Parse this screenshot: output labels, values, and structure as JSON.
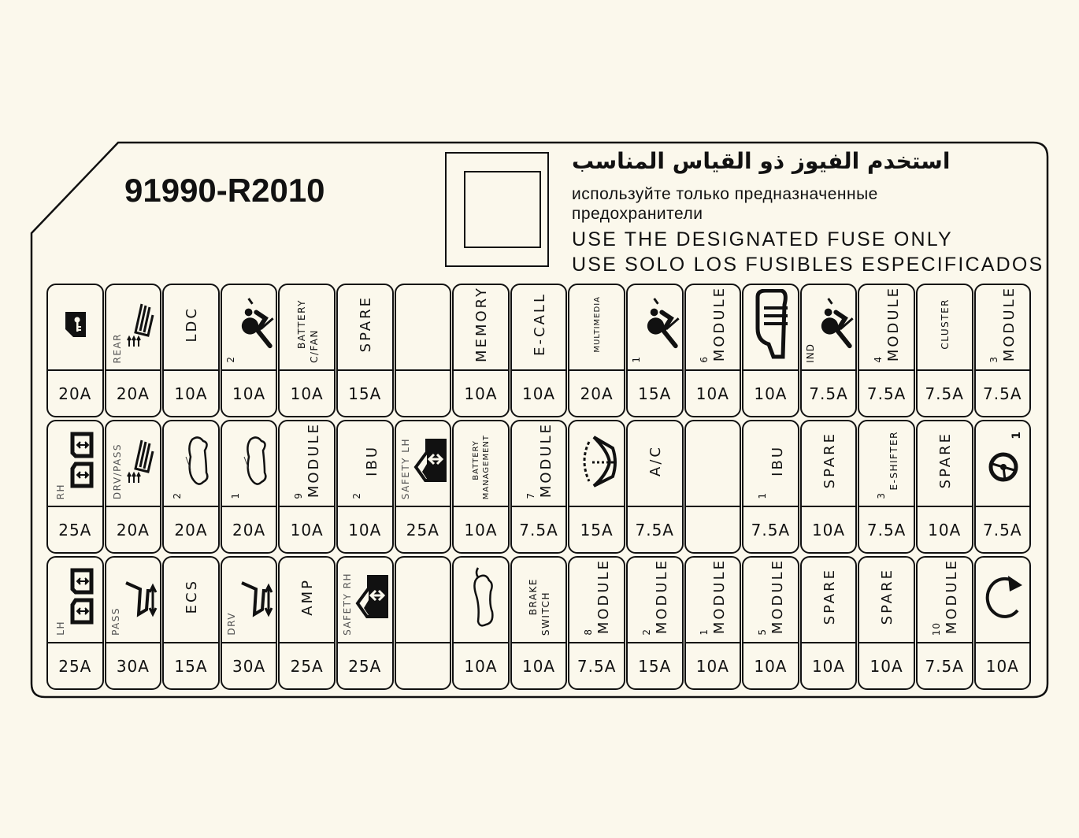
{
  "label": {
    "part_number": "91990-R2010",
    "warning_arabic": "استخدم الفيوز ذو القياس المناسب",
    "warning_russian_line1": "используйте только предназначенные",
    "warning_russian_line2": "предохранители",
    "warning_english": "USE THE DESIGNATED FUSE ONLY",
    "warning_spanish": "USE SOLO LOS FUSIBLES ESPECIFICADOS"
  },
  "colors": {
    "background": "#fbf8ec",
    "ink": "#111111"
  },
  "rows": [
    [
      {
        "icon": "door-key-icon",
        "amp": "20A"
      },
      {
        "side": "REAR",
        "icon": "seat-heater-icon",
        "amp": "20A"
      },
      {
        "main": "LDC",
        "amp": "10A"
      },
      {
        "sub": "2",
        "icon": "airbag-icon",
        "amp": "10A"
      },
      {
        "main": "BATTERY",
        "main2": "C/FAN",
        "size": "small",
        "amp": "10A"
      },
      {
        "main": "SPARE",
        "amp": "15A"
      },
      {
        "amp": ""
      },
      {
        "main": "MEMORY",
        "amp": "10A"
      },
      {
        "main": "E-CALL",
        "amp": "10A"
      },
      {
        "main": "MULTIMEDIA",
        "size": "tiny",
        "amp": "20A"
      },
      {
        "sub": "1",
        "icon": "airbag-icon",
        "amp": "15A"
      },
      {
        "sub": "6",
        "main": "MODULE",
        "amp": "10A"
      },
      {
        "icon": "mirror-heater-icon",
        "amp": "10A"
      },
      {
        "sub": "IND",
        "icon": "airbag-icon",
        "amp": "7.5A"
      },
      {
        "sub": "4",
        "main": "MODULE",
        "amp": "7.5A"
      },
      {
        "main": "CLUSTER",
        "size": "small",
        "amp": "7.5A"
      },
      {
        "sub": "3",
        "main": "MODULE",
        "amp": "7.5A"
      }
    ],
    [
      {
        "side": "RH",
        "icon": "power-window-icon",
        "amp": "25A"
      },
      {
        "side": "DRV/PASS",
        "icon": "seat-heater-icon",
        "amp": "20A"
      },
      {
        "sub": "2",
        "icon": "car-top-icon",
        "amp": "20A"
      },
      {
        "sub": "1",
        "icon": "car-top-icon",
        "amp": "20A"
      },
      {
        "sub": "9",
        "main": "MODULE",
        "amp": "10A"
      },
      {
        "sub": "2",
        "main": "IBU",
        "amp": "10A"
      },
      {
        "side": "SAFETY LH",
        "icon": "safety-window-icon",
        "amp": "25A"
      },
      {
        "main": "BATTERY",
        "main2": "MANAGEMENT",
        "size": "tiny",
        "amp": "10A"
      },
      {
        "sub": "7",
        "main": "MODULE",
        "amp": "7.5A"
      },
      {
        "icon": "wiper-icon",
        "amp": "15A"
      },
      {
        "main": "A/C",
        "amp": "7.5A"
      },
      {
        "amp": ""
      },
      {
        "sub": "1",
        "main": "IBU",
        "amp": "7.5A"
      },
      {
        "main": "SPARE",
        "amp": "10A"
      },
      {
        "sub": "3",
        "main": "E-SHIFTER",
        "size": "small",
        "amp": "7.5A"
      },
      {
        "main": "SPARE",
        "amp": "10A"
      },
      {
        "icon": "steering-wheel-icon",
        "iconsub": "1",
        "amp": "7.5A"
      }
    ],
    [
      {
        "side": "LH",
        "icon": "power-window-icon",
        "amp": "25A"
      },
      {
        "side": "PASS",
        "icon": "seat-adjust-icon",
        "amp": "30A"
      },
      {
        "main": "ECS",
        "amp": "15A"
      },
      {
        "side": "DRV",
        "icon": "seat-adjust-icon",
        "amp": "30A"
      },
      {
        "main": "AMP",
        "amp": "25A"
      },
      {
        "side": "SAFETY RH",
        "icon": "safety-window-icon",
        "amp": "25A"
      },
      {
        "amp": ""
      },
      {
        "icon": "car-side-icon",
        "amp": "10A"
      },
      {
        "main": "BRAKE",
        "main2": "SWITCH",
        "size": "small",
        "amp": "10A"
      },
      {
        "sub": "8",
        "main": "MODULE",
        "amp": "7.5A"
      },
      {
        "sub": "2",
        "main": "MODULE",
        "amp": "15A"
      },
      {
        "sub": "1",
        "main": "MODULE",
        "amp": "10A"
      },
      {
        "sub": "5",
        "main": "MODULE",
        "amp": "10A"
      },
      {
        "main": "SPARE",
        "amp": "10A"
      },
      {
        "main": "SPARE",
        "amp": "10A"
      },
      {
        "sub": "10",
        "main": "MODULE",
        "amp": "7.5A"
      },
      {
        "icon": "refresh-arrow-icon",
        "amp": "10A"
      }
    ]
  ]
}
